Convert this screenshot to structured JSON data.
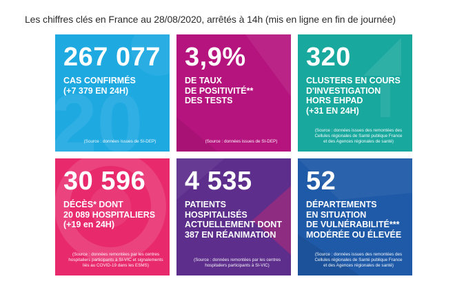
{
  "heading": "Les chiffres clés en France au 28/08/2020, arrêtés à 14h (mis en ligne en fin de journée)",
  "tiles": [
    {
      "number": "267 077",
      "label_lines": [
        "CAS CONFIRMÉS",
        "(+7 379 EN 24H)"
      ],
      "source_lines": [
        "(Source : données issues de SI-DEP)"
      ],
      "color": "#1ea9e1"
    },
    {
      "number": "3,9%",
      "label_lines": [
        "DE TAUX",
        "DE POSITIVITÉ**",
        "DES TESTS"
      ],
      "source_lines": [
        "(Source : données issues de SI-DEP)"
      ],
      "color": "#b5147e"
    },
    {
      "number": "320",
      "label_lines": [
        "CLUSTERS EN COURS",
        "D'INVESTIGATION",
        "HORS EHPAD",
        "(+31 EN 24H)"
      ],
      "source_lines": [
        "(Source : données issues des remontées des",
        "Cellules régionales de Santé publique France",
        "et des Agences régionales de santé)"
      ],
      "color": "#18a89e"
    },
    {
      "number": "30 596",
      "label_lines": [
        "DÉCÈS* DONT",
        "20 089 HOSPITALIERS",
        "(+19 en 24H)"
      ],
      "source_lines": [
        "(Source : données remontées par les centres",
        "hospitaliers participants à SI-VIC et signalements",
        "liés au COVID-19 dans les ESMS)"
      ],
      "color": "#e8296b"
    },
    {
      "number": "4 535",
      "label_lines": [
        "PATIENTS",
        "HOSPITALISÉS",
        "ACTUELLEMENT DONT",
        "387 EN RÉANIMATION"
      ],
      "source_lines": [
        "(Source : données remontées par les centres",
        "hospitaliers participants à SI-VIC)"
      ],
      "color": "#5d2e8c"
    },
    {
      "number": "52",
      "label_lines": [
        "DÉPARTEMENTS",
        "EN SITUATION",
        "DE VULNÉRABILITÉ***",
        "MODÉRÉE OU ÉLEVÉE"
      ],
      "source_lines": [
        "(Source : données issues des remontées des",
        "Cellules régionales de Santé publique France",
        "et des Agences régionales de santé)"
      ],
      "color": "#1f5aa8"
    }
  ]
}
